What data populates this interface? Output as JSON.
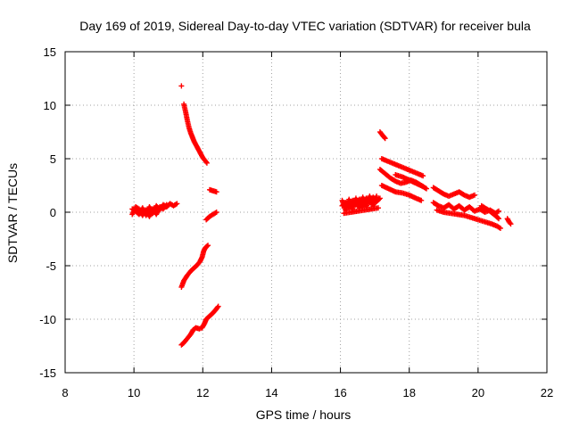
{
  "chart_data": {
    "type": "scatter",
    "title": "Day 169 of 2019, Sidereal Day-to-day VTEC variation (SDTVAR) for receiver bula",
    "xlabel": "GPS time / hours",
    "ylabel": "SDTVAR / TECUs",
    "xlim": [
      8,
      22
    ],
    "ylim": [
      -15,
      15
    ],
    "x_ticks": [
      "8",
      "10",
      "12",
      "14",
      "16",
      "18",
      "20",
      "22"
    ],
    "y_ticks": [
      "-15",
      "-10",
      "-5",
      "0",
      "5",
      "10",
      "15"
    ],
    "grid": true,
    "marker": "+",
    "color": "#ff0000",
    "series": [
      {
        "name": "SDTVAR",
        "segments": [
          [
            [
              9.95,
              0.3
            ],
            [
              10.05,
              0.1
            ],
            [
              10.15,
              -0.2
            ],
            [
              10.25,
              0.4
            ],
            [
              10.35,
              -0.3
            ],
            [
              10.45,
              0.5
            ],
            [
              10.55,
              -0.1
            ],
            [
              10.65,
              0.6
            ],
            [
              10.75,
              0.2
            ],
            [
              10.85,
              0.7
            ],
            [
              10.95,
              0.5
            ],
            [
              11.05,
              0.8
            ],
            [
              11.15,
              0.6
            ],
            [
              11.25,
              0.8
            ]
          ],
          [
            [
              9.95,
              -0.2
            ],
            [
              10.05,
              0.5
            ],
            [
              10.15,
              0.3
            ],
            [
              10.25,
              -0.3
            ],
            [
              10.35,
              0.2
            ],
            [
              10.45,
              -0.4
            ],
            [
              10.55,
              0.3
            ],
            [
              10.65,
              -0.2
            ],
            [
              10.75,
              0.5
            ],
            [
              10.85,
              0.3
            ],
            [
              10.95,
              0.7
            ]
          ],
          [
            [
              11.38,
              11.8
            ]
          ],
          [
            [
              11.45,
              10.1
            ],
            [
              11.5,
              9.4
            ],
            [
              11.55,
              8.6
            ],
            [
              11.6,
              7.9
            ],
            [
              11.65,
              7.4
            ],
            [
              11.7,
              7.0
            ],
            [
              11.75,
              6.6
            ],
            [
              11.8,
              6.3
            ],
            [
              11.85,
              6.0
            ],
            [
              11.9,
              5.7
            ],
            [
              11.95,
              5.4
            ],
            [
              12.0,
              5.1
            ],
            [
              12.05,
              4.9
            ],
            [
              12.12,
              4.6
            ]
          ],
          [
            [
              12.2,
              2.1
            ],
            [
              12.3,
              2.0
            ],
            [
              12.4,
              1.9
            ]
          ],
          [
            [
              12.1,
              -0.7
            ],
            [
              12.2,
              -0.4
            ],
            [
              12.3,
              -0.2
            ],
            [
              12.4,
              0.0
            ]
          ],
          [
            [
              11.38,
              -7.0
            ],
            [
              11.45,
              -6.4
            ],
            [
              11.55,
              -5.9
            ],
            [
              11.65,
              -5.5
            ],
            [
              11.75,
              -5.2
            ],
            [
              11.85,
              -4.9
            ],
            [
              11.92,
              -4.6
            ],
            [
              11.98,
              -4.2
            ],
            [
              12.03,
              -3.6
            ],
            [
              12.08,
              -3.3
            ],
            [
              12.15,
              -3.1
            ]
          ],
          [
            [
              11.38,
              -12.4
            ],
            [
              11.45,
              -12.2
            ],
            [
              11.55,
              -11.8
            ],
            [
              11.65,
              -11.4
            ],
            [
              11.72,
              -11.0
            ],
            [
              11.8,
              -10.8
            ],
            [
              11.9,
              -10.9
            ],
            [
              11.98,
              -10.8
            ],
            [
              12.05,
              -10.4
            ],
            [
              12.1,
              -10.0
            ],
            [
              12.2,
              -9.7
            ],
            [
              12.3,
              -9.4
            ],
            [
              12.38,
              -9.1
            ],
            [
              12.45,
              -8.8
            ]
          ],
          [
            [
              16.05,
              0.6
            ],
            [
              16.15,
              0.9
            ],
            [
              16.25,
              0.4
            ],
            [
              16.35,
              1.1
            ],
            [
              16.45,
              0.7
            ],
            [
              16.55,
              1.2
            ],
            [
              16.65,
              0.5
            ],
            [
              16.75,
              1.3
            ],
            [
              16.85,
              0.9
            ],
            [
              16.95,
              1.4
            ],
            [
              17.05,
              1.0
            ],
            [
              17.15,
              1.3
            ]
          ],
          [
            [
              16.05,
              1.1
            ],
            [
              16.15,
              0.2
            ],
            [
              16.25,
              1.2
            ],
            [
              16.35,
              0.3
            ],
            [
              16.45,
              1.3
            ],
            [
              16.55,
              0.4
            ],
            [
              16.65,
              1.4
            ],
            [
              16.75,
              0.5
            ],
            [
              16.85,
              1.5
            ],
            [
              16.95,
              0.6
            ],
            [
              17.05,
              1.5
            ]
          ],
          [
            [
              16.1,
              -0.1
            ],
            [
              16.3,
              0.0
            ],
            [
              16.5,
              0.1
            ],
            [
              16.7,
              0.2
            ],
            [
              16.9,
              0.3
            ],
            [
              17.1,
              0.4
            ]
          ],
          [
            [
              17.15,
              7.5
            ],
            [
              17.22,
              7.2
            ],
            [
              17.3,
              6.9
            ]
          ],
          [
            [
              17.2,
              5.0
            ],
            [
              17.35,
              4.8
            ],
            [
              17.5,
              4.6
            ],
            [
              17.65,
              4.4
            ],
            [
              17.8,
              4.2
            ],
            [
              17.95,
              4.0
            ],
            [
              18.1,
              3.8
            ],
            [
              18.25,
              3.6
            ],
            [
              18.4,
              3.4
            ]
          ],
          [
            [
              17.15,
              4.0
            ],
            [
              17.3,
              3.6
            ],
            [
              17.45,
              3.2
            ],
            [
              17.6,
              2.9
            ],
            [
              17.75,
              2.7
            ],
            [
              17.9,
              2.8
            ],
            [
              18.05,
              3.0
            ],
            [
              18.2,
              2.8
            ],
            [
              18.35,
              2.5
            ],
            [
              18.5,
              2.2
            ]
          ],
          [
            [
              17.2,
              2.5
            ],
            [
              17.4,
              2.2
            ],
            [
              17.6,
              1.9
            ],
            [
              17.8,
              1.8
            ],
            [
              18.0,
              1.6
            ],
            [
              18.2,
              1.3
            ],
            [
              18.35,
              1.1
            ]
          ],
          [
            [
              17.6,
              3.5
            ],
            [
              17.8,
              3.3
            ],
            [
              18.0,
              3.0
            ],
            [
              18.2,
              2.7
            ],
            [
              18.4,
              2.4
            ]
          ],
          [
            [
              18.7,
              2.3
            ],
            [
              18.85,
              2.0
            ],
            [
              19.0,
              1.7
            ],
            [
              19.15,
              1.5
            ],
            [
              19.3,
              1.7
            ],
            [
              19.45,
              1.9
            ],
            [
              19.6,
              1.6
            ],
            [
              19.75,
              1.4
            ],
            [
              19.9,
              1.6
            ]
          ],
          [
            [
              18.7,
              0.9
            ],
            [
              18.85,
              0.6
            ],
            [
              19.0,
              0.4
            ],
            [
              19.15,
              0.7
            ],
            [
              19.3,
              0.3
            ],
            [
              19.45,
              0.6
            ],
            [
              19.6,
              0.2
            ],
            [
              19.75,
              0.5
            ],
            [
              19.9,
              0.1
            ],
            [
              20.05,
              0.3
            ],
            [
              20.2,
              0.0
            ],
            [
              20.35,
              0.2
            ],
            [
              20.5,
              -0.1
            ],
            [
              20.6,
              0.1
            ]
          ],
          [
            [
              18.8,
              0.2
            ],
            [
              19.0,
              0.0
            ],
            [
              19.2,
              -0.1
            ],
            [
              19.4,
              -0.2
            ],
            [
              19.6,
              -0.3
            ],
            [
              19.8,
              -0.5
            ],
            [
              20.0,
              -0.7
            ],
            [
              20.2,
              -0.9
            ],
            [
              20.4,
              -1.1
            ],
            [
              20.55,
              -1.3
            ],
            [
              20.65,
              -1.5
            ]
          ],
          [
            [
              20.1,
              0.6
            ],
            [
              20.3,
              0.2
            ],
            [
              20.5,
              -0.3
            ],
            [
              20.6,
              -0.6
            ]
          ],
          [
            [
              20.85,
              -0.6
            ],
            [
              20.9,
              -0.9
            ],
            [
              20.95,
              -1.1
            ]
          ]
        ]
      }
    ]
  }
}
